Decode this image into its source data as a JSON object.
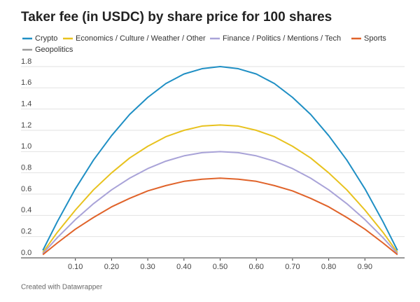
{
  "chart_data": {
    "type": "line",
    "title": "Taker fee (in USDC) by share price for 100 shares",
    "footer": "Created with Datawrapper",
    "x": [
      0.01,
      0.05,
      0.1,
      0.15,
      0.2,
      0.25,
      0.3,
      0.35,
      0.4,
      0.45,
      0.5,
      0.55,
      0.6,
      0.65,
      0.7,
      0.75,
      0.8,
      0.85,
      0.9,
      0.95,
      0.99
    ],
    "series": [
      {
        "name": "Crypto",
        "color": "#1f8fc4",
        "values": [
          0.07,
          0.34,
          0.65,
          0.92,
          1.15,
          1.35,
          1.51,
          1.64,
          1.73,
          1.78,
          1.8,
          1.78,
          1.73,
          1.64,
          1.51,
          1.35,
          1.15,
          0.92,
          0.65,
          0.34,
          0.07
        ]
      },
      {
        "name": "Economics / Culture / Weather / Other",
        "color": "#e8c21e",
        "values": [
          0.05,
          0.24,
          0.45,
          0.64,
          0.8,
          0.94,
          1.05,
          1.14,
          1.2,
          1.24,
          1.25,
          1.24,
          1.2,
          1.14,
          1.05,
          0.94,
          0.8,
          0.64,
          0.45,
          0.24,
          0.05
        ]
      },
      {
        "name": "Finance / Politics / Mentions / Tech",
        "color": "#a9a3d8",
        "values": [
          0.04,
          0.19,
          0.36,
          0.51,
          0.64,
          0.75,
          0.84,
          0.91,
          0.96,
          0.99,
          1.0,
          0.99,
          0.96,
          0.91,
          0.84,
          0.75,
          0.64,
          0.51,
          0.36,
          0.19,
          0.04
        ]
      },
      {
        "name": "Sports",
        "color": "#e0632a",
        "values": [
          0.03,
          0.14,
          0.27,
          0.38,
          0.48,
          0.56,
          0.63,
          0.68,
          0.72,
          0.74,
          0.75,
          0.74,
          0.72,
          0.68,
          0.63,
          0.56,
          0.48,
          0.38,
          0.27,
          0.14,
          0.03
        ]
      },
      {
        "name": "Geopolitics",
        "color": "#9a9a9a",
        "values": [
          0,
          0,
          0,
          0,
          0,
          0,
          0,
          0,
          0,
          0,
          0,
          0,
          0,
          0,
          0,
          0,
          0,
          0,
          0,
          0,
          0
        ]
      }
    ],
    "xlim": [
      0,
      1
    ],
    "xticks": [
      {
        "value": 0.1,
        "label": "0.10"
      },
      {
        "value": 0.2,
        "label": "0.20"
      },
      {
        "value": 0.3,
        "label": "0.30"
      },
      {
        "value": 0.4,
        "label": "0.40"
      },
      {
        "value": 0.5,
        "label": "0.50"
      },
      {
        "value": 0.6,
        "label": "0.60"
      },
      {
        "value": 0.7,
        "label": "0.70"
      },
      {
        "value": 0.8,
        "label": "0.80"
      },
      {
        "value": 0.9,
        "label": "0.90"
      }
    ],
    "ylim": [
      0,
      1.8
    ],
    "yticks": [
      {
        "value": 0,
        "label": "0.0"
      },
      0.2,
      0.4,
      0.6,
      0.8,
      {
        "value": 1,
        "label": "1.0"
      },
      1.2,
      1.4,
      1.6,
      1.8
    ],
    "grid": true
  }
}
